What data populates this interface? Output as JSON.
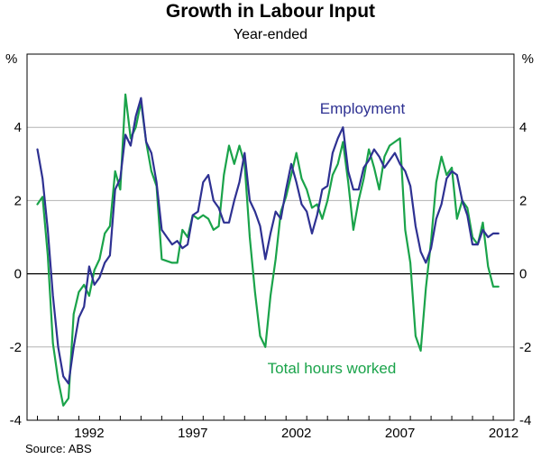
{
  "chart_data": {
    "type": "line",
    "title": "Growth in Labour Input",
    "subtitle": "Year-ended",
    "y_unit_label": "%",
    "ylim": [
      -4,
      6
    ],
    "yticks": [
      -4,
      -2,
      0,
      2,
      4
    ],
    "xlim": [
      1989.5,
      2013.0
    ],
    "xticks": [
      "1992",
      "1997",
      "2002",
      "2007",
      "2012"
    ],
    "grid": true,
    "source": "Source: ABS",
    "colors": {
      "employment": "#2e3192",
      "hours": "#1aa34a",
      "grid": "#b3b3b3",
      "zero": "#000000"
    },
    "series": [
      {
        "name": "Employment",
        "color": "#2e3192",
        "x": [
          1990.0,
          1990.25,
          1990.5,
          1990.75,
          1991.0,
          1991.25,
          1991.5,
          1991.75,
          1992.0,
          1992.25,
          1992.5,
          1992.75,
          1993.0,
          1993.25,
          1993.5,
          1993.75,
          1994.0,
          1994.25,
          1994.5,
          1994.75,
          1995.0,
          1995.25,
          1995.5,
          1995.75,
          1996.0,
          1996.25,
          1996.5,
          1996.75,
          1997.0,
          1997.25,
          1997.5,
          1997.75,
          1998.0,
          1998.25,
          1998.5,
          1998.75,
          1999.0,
          1999.25,
          1999.5,
          1999.75,
          2000.0,
          2000.25,
          2000.5,
          2000.75,
          2001.0,
          2001.25,
          2001.5,
          2001.75,
          2002.0,
          2002.25,
          2002.5,
          2002.75,
          2003.0,
          2003.25,
          2003.5,
          2003.75,
          2004.0,
          2004.25,
          2004.5,
          2004.75,
          2005.0,
          2005.25,
          2005.5,
          2005.75,
          2006.0,
          2006.25,
          2006.5,
          2006.75,
          2007.0,
          2007.25,
          2007.5,
          2007.75,
          2008.0,
          2008.25,
          2008.5,
          2008.75,
          2009.0,
          2009.25,
          2009.5,
          2009.75,
          2010.0,
          2010.25,
          2010.5,
          2010.75,
          2011.0,
          2011.25,
          2011.5,
          2011.75,
          2012.0,
          2012.25
        ],
        "values": [
          3.4,
          2.6,
          1.2,
          -0.6,
          -2.0,
          -2.8,
          -3.0,
          -2.0,
          -1.2,
          -0.9,
          0.2,
          -0.3,
          -0.1,
          0.3,
          0.5,
          2.3,
          2.6,
          3.8,
          3.5,
          4.3,
          4.8,
          3.6,
          3.3,
          2.5,
          1.2,
          1.0,
          0.8,
          0.9,
          0.7,
          0.8,
          1.6,
          1.7,
          2.5,
          2.7,
          2.0,
          1.8,
          1.4,
          1.4,
          2.0,
          2.5,
          3.3,
          2.0,
          1.7,
          1.3,
          0.4,
          1.1,
          1.7,
          1.5,
          2.3,
          3.0,
          2.5,
          1.9,
          1.7,
          1.1,
          1.6,
          2.3,
          2.4,
          3.3,
          3.7,
          4.0,
          2.8,
          2.3,
          2.3,
          2.9,
          3.1,
          3.4,
          3.2,
          2.9,
          3.1,
          3.3,
          3.0,
          2.8,
          2.4,
          1.3,
          0.6,
          0.3,
          0.7,
          1.5,
          1.9,
          2.6,
          2.8,
          2.7,
          2.0,
          1.6,
          0.8,
          0.8,
          1.2,
          1.0,
          1.1,
          1.1
        ]
      },
      {
        "name": "Total hours worked",
        "color": "#1aa34a",
        "x": [
          1990.0,
          1990.25,
          1990.5,
          1990.75,
          1991.0,
          1991.25,
          1991.5,
          1991.75,
          1992.0,
          1992.25,
          1992.5,
          1992.75,
          1993.0,
          1993.25,
          1993.5,
          1993.75,
          1994.0,
          1994.25,
          1994.5,
          1994.75,
          1995.0,
          1995.25,
          1995.5,
          1995.75,
          1996.0,
          1996.25,
          1996.5,
          1996.75,
          1997.0,
          1997.25,
          1997.5,
          1997.75,
          1998.0,
          1998.25,
          1998.5,
          1998.75,
          1999.0,
          1999.25,
          1999.5,
          1999.75,
          2000.0,
          2000.25,
          2000.5,
          2000.75,
          2001.0,
          2001.25,
          2001.5,
          2001.75,
          2002.0,
          2002.25,
          2002.5,
          2002.75,
          2003.0,
          2003.25,
          2003.5,
          2003.75,
          2004.0,
          2004.25,
          2004.5,
          2004.75,
          2005.0,
          2005.25,
          2005.5,
          2005.75,
          2006.0,
          2006.25,
          2006.5,
          2006.75,
          2007.0,
          2007.25,
          2007.5,
          2007.75,
          2008.0,
          2008.25,
          2008.5,
          2008.75,
          2009.0,
          2009.25,
          2009.5,
          2009.75,
          2010.0,
          2010.25,
          2010.5,
          2010.75,
          2011.0,
          2011.25,
          2011.5,
          2011.75,
          2012.0,
          2012.25
        ],
        "values": [
          1.9,
          2.1,
          0.5,
          -1.9,
          -2.9,
          -3.6,
          -3.4,
          -1.1,
          -0.5,
          -0.3,
          -0.6,
          0.1,
          0.4,
          1.1,
          1.3,
          2.8,
          2.3,
          4.9,
          3.7,
          4.0,
          4.7,
          3.6,
          2.8,
          2.4,
          0.4,
          0.35,
          0.3,
          0.3,
          1.2,
          1.0,
          1.6,
          1.5,
          1.6,
          1.5,
          1.2,
          1.3,
          2.7,
          3.5,
          3.0,
          3.5,
          3.0,
          1.0,
          -0.5,
          -1.7,
          -2.0,
          -0.6,
          0.4,
          1.7,
          2.1,
          2.7,
          3.3,
          2.6,
          2.3,
          1.8,
          1.9,
          1.5,
          2.0,
          2.7,
          3.0,
          3.6,
          2.5,
          1.2,
          2.0,
          2.6,
          3.4,
          2.9,
          2.3,
          3.2,
          3.5,
          3.6,
          3.7,
          1.2,
          0.3,
          -1.7,
          -2.1,
          -0.4,
          0.9,
          2.5,
          3.2,
          2.7,
          2.9,
          1.5,
          2.0,
          1.8,
          1.0,
          0.8,
          1.4,
          0.2,
          -0.35,
          -0.35
        ]
      }
    ],
    "annotations": [
      {
        "text": "Employment",
        "series": "Employment"
      },
      {
        "text": "Total hours worked",
        "series": "Total hours worked"
      }
    ]
  }
}
